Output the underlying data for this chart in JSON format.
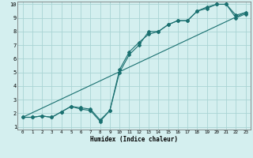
{
  "xlabel": "Humidex (Indice chaleur)",
  "bg_color": "#d4efef",
  "line_color": "#1a7070",
  "xlim": [
    -0.5,
    23.5
  ],
  "ylim": [
    0.8,
    10.2
  ],
  "xticks": [
    0,
    1,
    2,
    3,
    4,
    5,
    6,
    7,
    8,
    9,
    10,
    11,
    12,
    13,
    14,
    15,
    16,
    17,
    18,
    19,
    20,
    21,
    22,
    23
  ],
  "yticks": [
    1,
    2,
    3,
    4,
    5,
    6,
    7,
    8,
    9,
    10
  ],
  "grid_color": "#aad4d4",
  "series1_x": [
    0,
    1,
    2,
    3,
    4,
    5,
    6,
    7,
    8,
    9,
    10,
    11,
    12,
    13,
    14,
    15,
    16,
    17,
    18,
    19,
    20,
    21,
    22,
    23
  ],
  "series1_y": [
    1.7,
    1.7,
    1.8,
    1.7,
    2.1,
    2.5,
    2.3,
    2.2,
    1.4,
    2.2,
    5.0,
    6.3,
    7.0,
    8.0,
    8.0,
    8.5,
    8.8,
    8.8,
    9.5,
    9.7,
    10.0,
    10.0,
    9.0,
    9.3
  ],
  "series2_x": [
    0,
    1,
    2,
    3,
    4,
    5,
    6,
    7,
    8,
    9,
    10,
    11,
    12,
    13,
    14,
    15,
    16,
    17,
    18,
    19,
    20,
    21,
    22,
    23
  ],
  "series2_y": [
    1.7,
    1.7,
    1.8,
    1.7,
    2.1,
    2.5,
    2.4,
    2.3,
    1.5,
    2.2,
    5.2,
    6.5,
    7.2,
    7.8,
    8.0,
    8.5,
    8.8,
    8.8,
    9.5,
    9.8,
    10.0,
    10.0,
    9.2,
    9.4
  ],
  "series3_x": [
    0,
    23
  ],
  "series3_y": [
    1.7,
    9.4
  ]
}
